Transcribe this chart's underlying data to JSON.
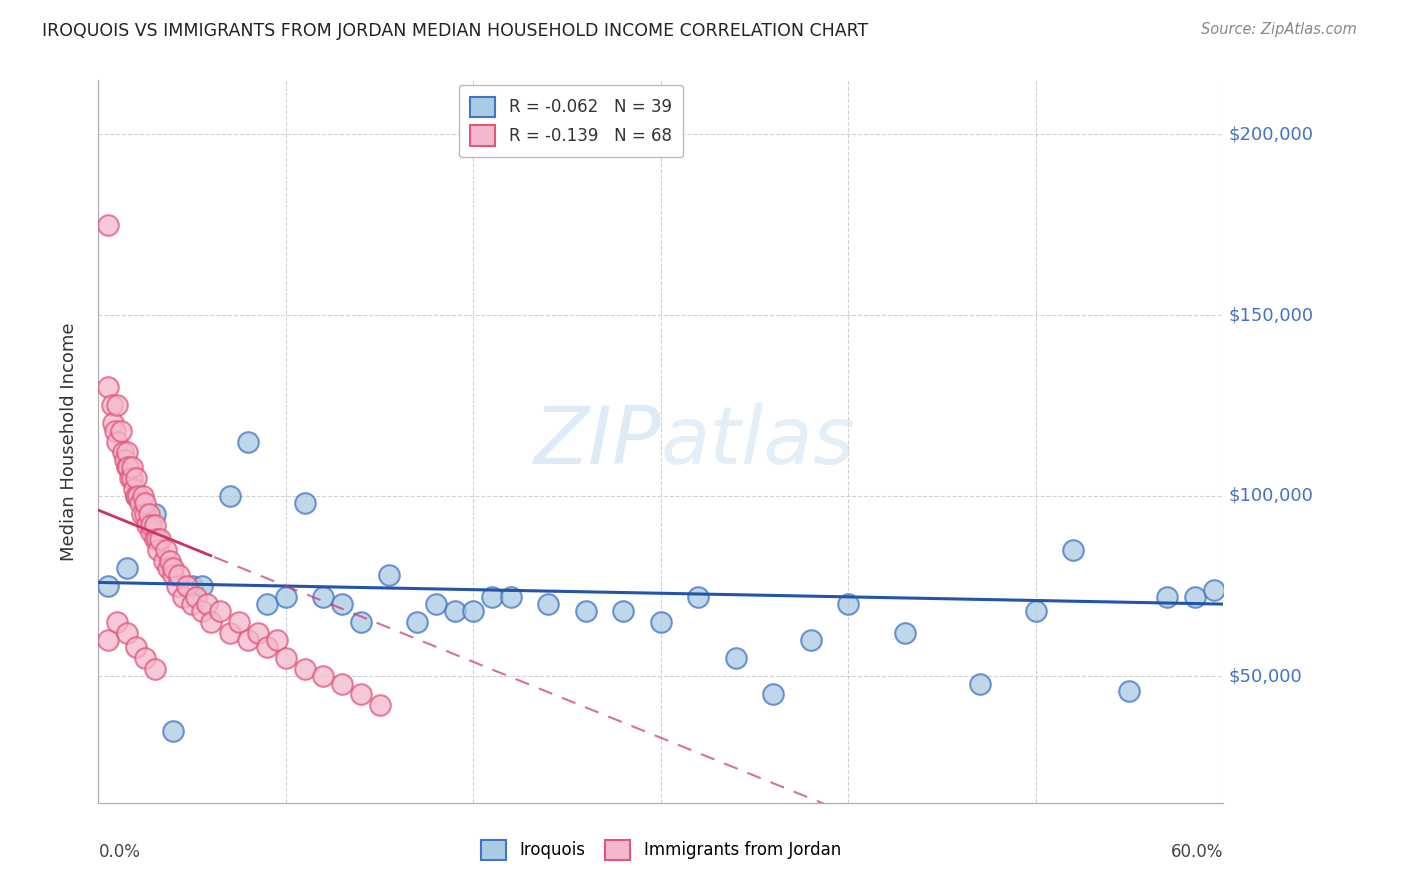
{
  "title": "IROQUOIS VS IMMIGRANTS FROM JORDAN MEDIAN HOUSEHOLD INCOME CORRELATION CHART",
  "source": "Source: ZipAtlas.com",
  "ylabel": "Median Household Income",
  "xmin": 0.0,
  "xmax": 0.6,
  "ymin": 15000,
  "ymax": 215000,
  "yticks": [
    50000,
    100000,
    150000,
    200000
  ],
  "ytick_labels": [
    "$50,000",
    "$100,000",
    "$150,000",
    "$200,000"
  ],
  "xticks": [
    0.0,
    0.1,
    0.2,
    0.3,
    0.4,
    0.5,
    0.6
  ],
  "legend_r1": "R = -0.062",
  "legend_n1": "N = 39",
  "legend_r2": "R = -0.139",
  "legend_n2": "N = 68",
  "color_blue_fill": "#a8cce4",
  "color_blue_edge": "#4472c4",
  "color_pink_fill": "#f4b8cc",
  "color_pink_edge": "#e05878",
  "color_blue_line": "#2255aa",
  "color_pink_line": "#cc3366",
  "color_axis_right": "#4472c4",
  "iroquois_x": [
    0.005,
    0.015,
    0.02,
    0.03,
    0.04,
    0.05,
    0.055,
    0.07,
    0.08,
    0.09,
    0.1,
    0.11,
    0.12,
    0.13,
    0.14,
    0.155,
    0.17,
    0.18,
    0.19,
    0.2,
    0.21,
    0.22,
    0.24,
    0.26,
    0.28,
    0.3,
    0.32,
    0.34,
    0.36,
    0.38,
    0.4,
    0.43,
    0.47,
    0.5,
    0.52,
    0.55,
    0.57,
    0.585,
    0.595
  ],
  "iroquois_y": [
    75000,
    80000,
    100000,
    95000,
    35000,
    75000,
    75000,
    100000,
    115000,
    70000,
    72000,
    98000,
    72000,
    70000,
    65000,
    78000,
    65000,
    70000,
    68000,
    68000,
    72000,
    72000,
    70000,
    68000,
    68000,
    65000,
    72000,
    55000,
    45000,
    60000,
    70000,
    62000,
    48000,
    68000,
    85000,
    46000,
    72000,
    72000,
    74000
  ],
  "jordan_x": [
    0.005,
    0.005,
    0.007,
    0.008,
    0.009,
    0.01,
    0.01,
    0.012,
    0.013,
    0.014,
    0.015,
    0.015,
    0.016,
    0.017,
    0.018,
    0.018,
    0.019,
    0.02,
    0.02,
    0.021,
    0.022,
    0.023,
    0.024,
    0.025,
    0.025,
    0.026,
    0.027,
    0.028,
    0.028,
    0.03,
    0.03,
    0.031,
    0.032,
    0.033,
    0.035,
    0.036,
    0.037,
    0.038,
    0.04,
    0.04,
    0.042,
    0.043,
    0.045,
    0.047,
    0.05,
    0.052,
    0.055,
    0.058,
    0.06,
    0.065,
    0.07,
    0.075,
    0.08,
    0.085,
    0.09,
    0.095,
    0.1,
    0.11,
    0.12,
    0.13,
    0.14,
    0.15,
    0.005,
    0.01,
    0.015,
    0.02,
    0.025,
    0.03
  ],
  "jordan_y": [
    175000,
    130000,
    125000,
    120000,
    118000,
    125000,
    115000,
    118000,
    112000,
    110000,
    108000,
    112000,
    108000,
    105000,
    105000,
    108000,
    102000,
    100000,
    105000,
    100000,
    98000,
    95000,
    100000,
    95000,
    98000,
    92000,
    95000,
    90000,
    92000,
    88000,
    92000,
    88000,
    85000,
    88000,
    82000,
    85000,
    80000,
    82000,
    78000,
    80000,
    75000,
    78000,
    72000,
    75000,
    70000,
    72000,
    68000,
    70000,
    65000,
    68000,
    62000,
    65000,
    60000,
    62000,
    58000,
    60000,
    55000,
    52000,
    50000,
    48000,
    45000,
    42000,
    60000,
    65000,
    62000,
    58000,
    55000,
    52000
  ]
}
